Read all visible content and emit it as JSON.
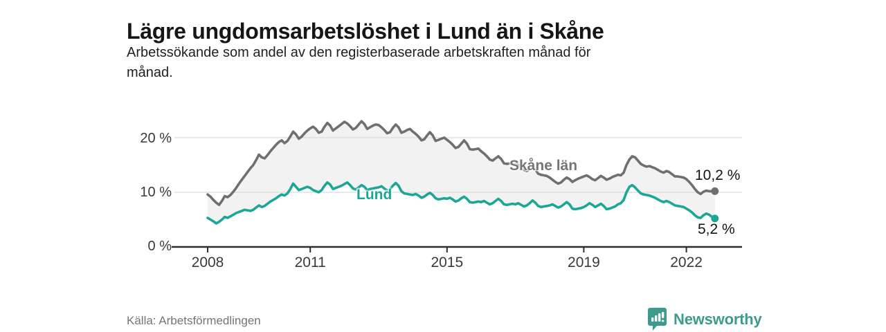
{
  "header": {
    "title": "Lägre ungdomsarbetslöshet i Lund än i Skåne",
    "subtitle_lines": [
      "Arbetssökande som andel av den registerbaserade arbetskraften månad för",
      "månad."
    ]
  },
  "footer": {
    "source": "Källa: Arbetsförmedlingen",
    "brand_name": "Newsworthy",
    "brand_icon": "bar-chart-speech-bubble-icon"
  },
  "colors": {
    "lund_line": "#1CA695",
    "skane_line": "#6F6F6F",
    "skane_label": "#757575",
    "band_fill": "#F2F2F2",
    "gridline": "#E0E0E0",
    "axis": "#2D2D2D",
    "text": "#161616",
    "muted_text": "#73737b",
    "brand_teal": "#3D9A8F"
  },
  "chart_data": {
    "type": "line",
    "title": "Lägre ungdomsarbetslöshet i Lund än i Skåne",
    "subtitle": "Arbetssökande som andel av den registerbaserade arbetskraften månad för månad.",
    "unit": "%",
    "x_start_year": 2008,
    "x_start_month": 1,
    "x_interval": "monthly",
    "x_end_year": 2022,
    "x_end_month": 11,
    "x_tick_years": [
      2008,
      2011,
      2015,
      2019,
      2022
    ],
    "x_tick_labels": [
      "2008",
      "2011",
      "2015",
      "2019",
      "2022"
    ],
    "y_tick_labels": [
      "0 %",
      "10 %",
      "20 %"
    ],
    "y_gridlines": [
      10,
      20
    ],
    "ylim": [
      0,
      23.5
    ],
    "grid": "horizontal",
    "legend_position": "inline-labels",
    "band_between_series": true,
    "series": [
      {
        "name": "Skåne län",
        "color": "#6F6F6F",
        "end_label": "10,2 %",
        "end_value": 10.2,
        "values": [
          9.6,
          9.2,
          8.6,
          8.1,
          7.7,
          8.4,
          9.3,
          9.1,
          9.5,
          10.1,
          10.8,
          11.6,
          12.3,
          13.0,
          13.7,
          14.4,
          15.0,
          15.9,
          16.9,
          16.4,
          16.2,
          16.8,
          17.5,
          18.1,
          18.7,
          19.2,
          19.5,
          19.0,
          19.4,
          20.2,
          21.1,
          20.6,
          19.8,
          20.2,
          20.8,
          21.3,
          21.7,
          22.0,
          21.6,
          20.9,
          21.1,
          22.0,
          22.7,
          22.2,
          21.3,
          21.7,
          22.1,
          22.5,
          22.9,
          22.6,
          22.1,
          21.5,
          21.8,
          22.4,
          23.0,
          22.5,
          21.6,
          21.9,
          22.2,
          22.4,
          22.3,
          21.9,
          21.4,
          20.8,
          21.0,
          21.8,
          22.4,
          21.9,
          20.9,
          21.1,
          21.4,
          21.6,
          21.1,
          20.7,
          20.2,
          19.5,
          19.7,
          20.4,
          21.0,
          20.4,
          19.4,
          19.6,
          19.8,
          20.0,
          19.6,
          19.2,
          18.7,
          18.1,
          18.3,
          18.9,
          19.5,
          18.9,
          17.9,
          17.8,
          17.9,
          18.0,
          17.5,
          17.1,
          16.6,
          16.0,
          15.8,
          16.2,
          16.6,
          16.1,
          15.3,
          15.2,
          15.3,
          15.4,
          15.3,
          15.0,
          14.6,
          14.1,
          13.9,
          14.3,
          14.7,
          14.2,
          13.4,
          13.2,
          13.1,
          13.0,
          12.7,
          12.3,
          11.9,
          11.6,
          11.8,
          12.3,
          12.7,
          12.4,
          11.9,
          12.2,
          12.5,
          12.7,
          12.9,
          13.1,
          12.8,
          12.4,
          12.2,
          12.6,
          13.0,
          12.7,
          12.3,
          12.5,
          12.8,
          13.0,
          13.2,
          13.1,
          13.6,
          15.0,
          16.0,
          16.6,
          16.4,
          15.8,
          15.2,
          14.9,
          14.7,
          14.8,
          14.6,
          14.4,
          14.1,
          13.8,
          13.6,
          13.9,
          13.7,
          13.3,
          12.9,
          12.9,
          12.8,
          12.7,
          12.4,
          11.9,
          11.3,
          10.6,
          10.0,
          9.7,
          10.1,
          10.3,
          10.2,
          10.2,
          10.2
        ]
      },
      {
        "name": "Lund",
        "color": "#1CA695",
        "end_label": "5,2 %",
        "end_value": 5.2,
        "values": [
          5.3,
          5.0,
          4.7,
          4.3,
          4.6,
          5.0,
          5.5,
          5.3,
          5.6,
          5.9,
          6.2,
          6.4,
          6.6,
          6.8,
          6.7,
          6.6,
          6.8,
          7.2,
          7.6,
          7.3,
          7.5,
          7.9,
          8.3,
          8.6,
          8.9,
          9.3,
          9.6,
          9.4,
          9.8,
          10.6,
          11.6,
          11.0,
          10.4,
          10.6,
          10.8,
          11.0,
          10.8,
          10.4,
          10.2,
          10.0,
          10.4,
          11.2,
          11.8,
          11.4,
          10.6,
          10.8,
          11.0,
          11.2,
          11.5,
          11.8,
          11.3,
          10.7,
          10.5,
          10.9,
          11.3,
          11.0,
          10.4,
          10.6,
          10.7,
          10.8,
          10.9,
          11.1,
          10.7,
          10.3,
          10.6,
          11.2,
          11.7,
          11.2,
          10.2,
          9.8,
          9.7,
          9.6,
          9.5,
          9.7,
          9.4,
          9.0,
          9.2,
          9.6,
          9.9,
          9.5,
          8.9,
          8.7,
          8.8,
          8.9,
          8.8,
          9.0,
          8.7,
          8.3,
          8.5,
          8.9,
          9.2,
          8.8,
          8.2,
          8.1,
          8.2,
          8.3,
          8.2,
          8.4,
          8.1,
          7.8,
          8.0,
          8.4,
          8.8,
          8.4,
          7.8,
          7.7,
          7.8,
          7.9,
          7.8,
          8.0,
          7.7,
          7.4,
          7.6,
          8.0,
          8.5,
          8.1,
          7.5,
          7.3,
          7.4,
          7.5,
          7.6,
          7.8,
          7.5,
          7.2,
          7.4,
          7.8,
          8.2,
          7.8,
          7.0,
          6.9,
          7.0,
          7.1,
          7.3,
          7.6,
          8.0,
          7.7,
          7.3,
          7.6,
          7.9,
          7.5,
          6.9,
          7.0,
          7.2,
          7.4,
          7.8,
          8.0,
          8.6,
          10.0,
          11.0,
          11.3,
          10.9,
          10.3,
          9.8,
          9.6,
          9.5,
          9.4,
          9.2,
          9.0,
          8.7,
          8.4,
          8.2,
          8.4,
          8.2,
          7.9,
          7.6,
          7.5,
          7.4,
          7.3,
          7.0,
          6.7,
          6.3,
          5.8,
          5.4,
          5.3,
          5.8,
          6.1,
          5.9,
          5.5,
          5.2
        ]
      }
    ]
  }
}
